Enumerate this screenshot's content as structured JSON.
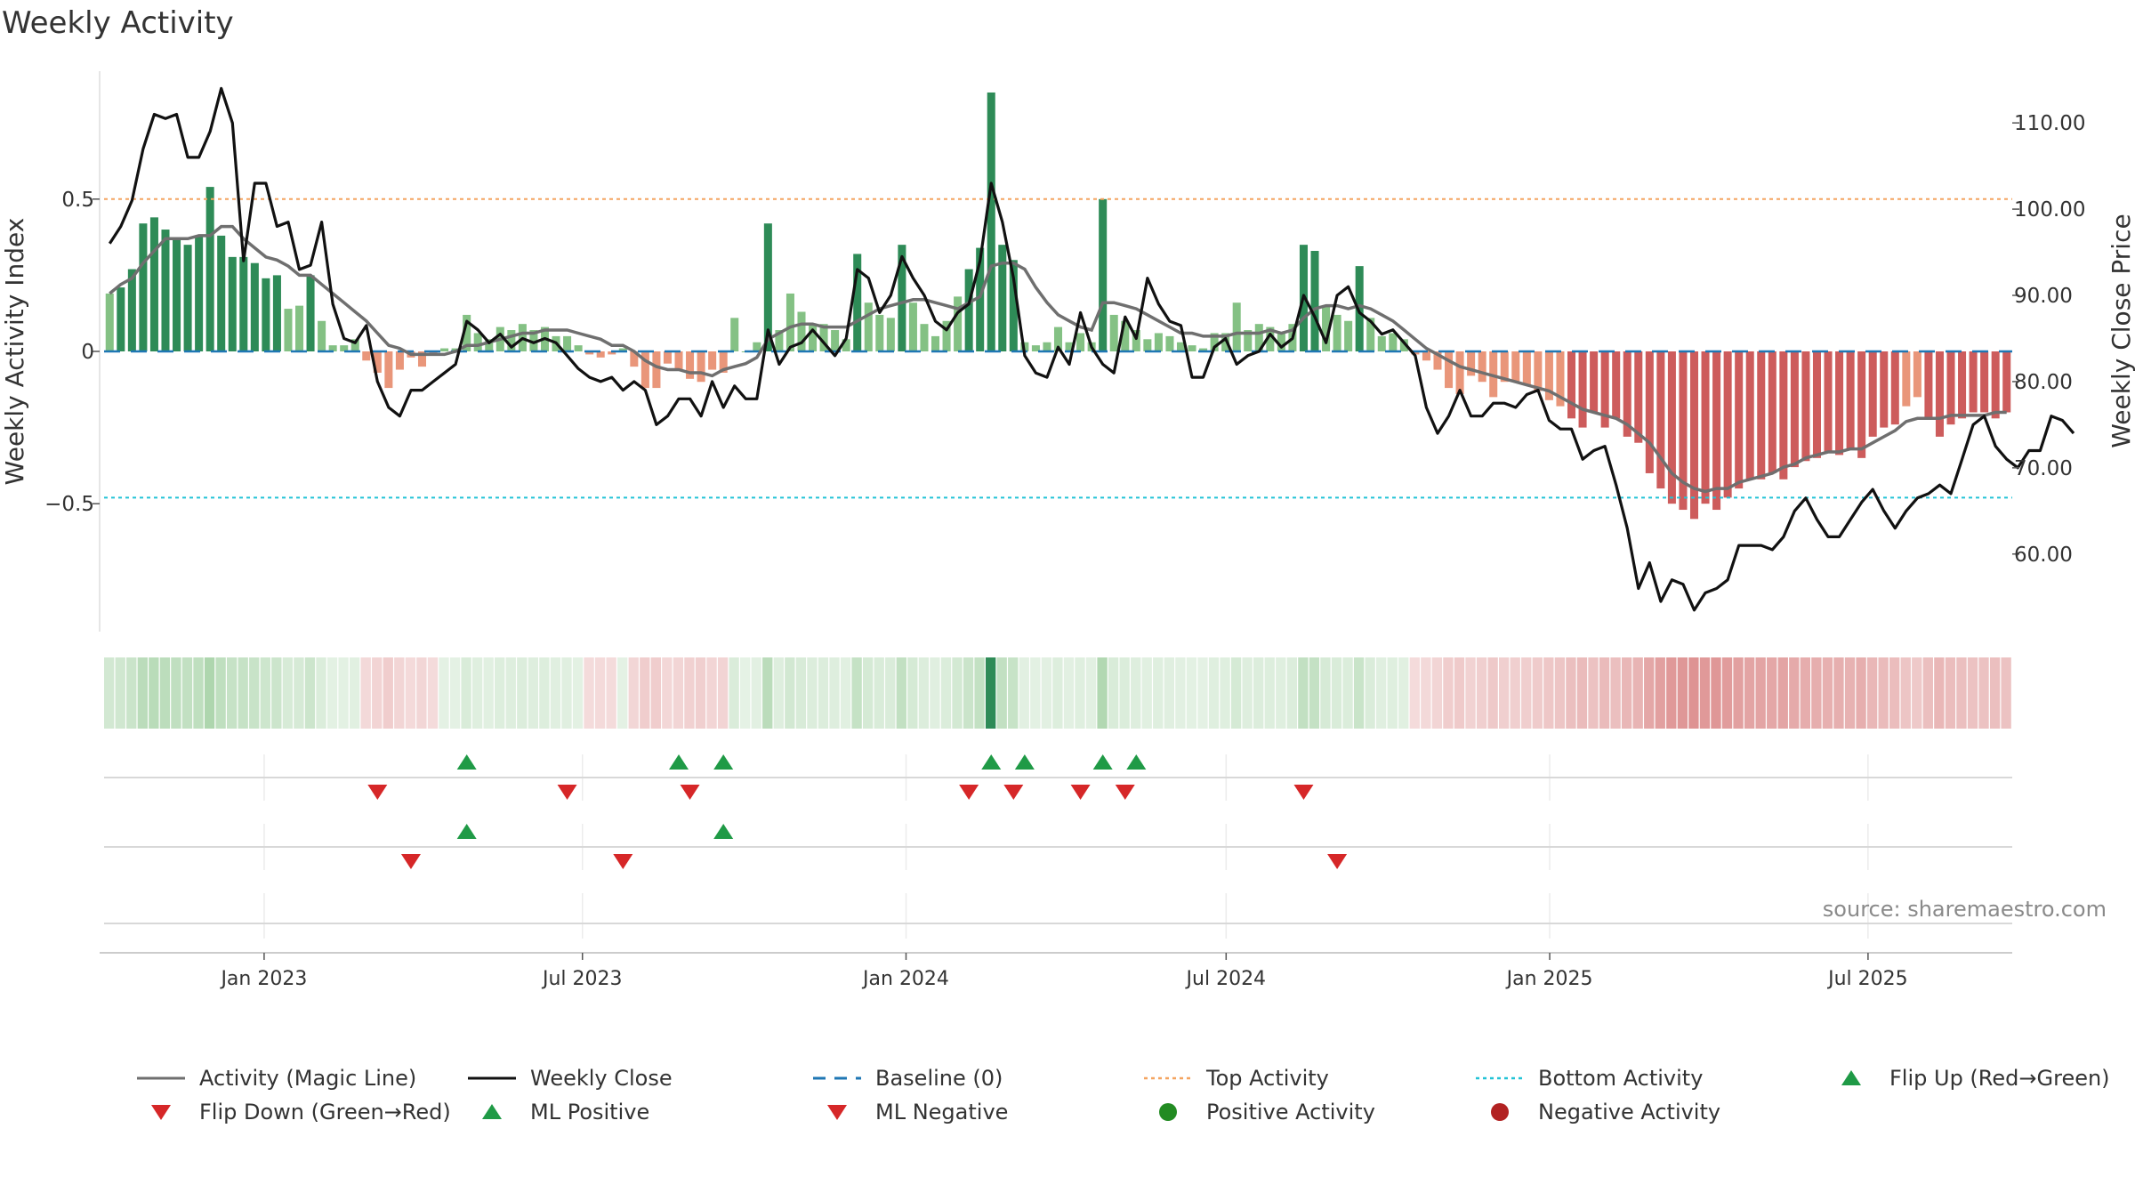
{
  "title": "Weekly Activity",
  "source": "source: sharemaestro.com",
  "colors": {
    "pos_dark": "#2e8b57",
    "pos_light": "#84c184",
    "neg_dark": "#cd5c5c",
    "neg_light": "#e9967a",
    "magic": "#6f6f6f",
    "close": "#111111",
    "baseline": "#1f77b4",
    "top": "#f4a460",
    "bottom": "#22c3d6",
    "up": "#1f9a46",
    "down": "#d62728",
    "pos_dot": "#228b22",
    "neg_dot": "#b22222"
  },
  "chart_data": {
    "type": "bar+line",
    "title": "Weekly Activity",
    "ylabel": "Weekly Activity Index",
    "y2label": "Weekly Close Price",
    "ylim": [
      -0.92,
      0.92
    ],
    "y2lim": [
      51.0,
      116.0
    ],
    "yticks": [
      0.5,
      0,
      -0.5
    ],
    "yticklabels": [
      "0.5",
      "0",
      "−0.5"
    ],
    "y2ticks": [
      110,
      100,
      90,
      80,
      70,
      60
    ],
    "y2ticklabels": [
      "110.00",
      "100.00",
      "90.00",
      "80.00",
      "70.00",
      "60.00"
    ],
    "top_activity": 0.5,
    "bottom_activity": -0.48,
    "baseline": 0,
    "x_start": "2022-10-02",
    "x_end": "2025-09-21",
    "xticks": [
      "2023-01-01",
      "2023-07-01",
      "2024-01-01",
      "2024-07-01",
      "2025-01-01",
      "2025-07-01"
    ],
    "xticklabels": [
      "Jan 2023",
      "Jul 2023",
      "Jan 2024",
      "Jul 2024",
      "Jan 2025",
      "Jul 2025"
    ],
    "activity": [
      0.19,
      0.21,
      0.27,
      0.42,
      0.44,
      0.4,
      0.37,
      0.35,
      0.38,
      0.54,
      0.38,
      0.31,
      0.31,
      0.29,
      0.24,
      0.25,
      0.14,
      0.15,
      0.25,
      0.1,
      0.02,
      0.02,
      0.04,
      -0.03,
      -0.07,
      -0.12,
      -0.06,
      -0.02,
      -0.05,
      -0.01,
      0.01,
      0.01,
      0.12,
      0.06,
      0.04,
      0.08,
      0.07,
      0.09,
      0.07,
      0.08,
      0.05,
      0.05,
      0.02,
      -0.01,
      -0.02,
      -0.01,
      0.01,
      -0.05,
      -0.12,
      -0.12,
      -0.04,
      -0.06,
      -0.09,
      -0.1,
      -0.06,
      -0.07,
      0.11,
      0.0,
      0.03,
      0.42,
      0.07,
      0.19,
      0.13,
      0.09,
      0.09,
      0.07,
      0.04,
      0.32,
      0.16,
      0.12,
      0.11,
      0.35,
      0.16,
      0.09,
      0.05,
      0.1,
      0.18,
      0.27,
      0.34,
      0.85,
      0.35,
      0.3,
      0.03,
      0.02,
      0.03,
      0.08,
      0.03,
      0.06,
      0.03,
      0.5,
      0.12,
      0.1,
      0.07,
      0.04,
      0.06,
      0.05,
      0.03,
      0.02,
      0.01,
      0.06,
      0.06,
      0.16,
      0.07,
      0.09,
      0.08,
      0.06,
      0.09,
      0.35,
      0.33,
      0.15,
      0.12,
      0.1,
      0.28,
      0.11,
      0.05,
      0.06,
      0.04,
      -0.01,
      -0.03,
      -0.06,
      -0.12,
      -0.14,
      -0.08,
      -0.1,
      -0.15,
      -0.1,
      -0.1,
      -0.11,
      -0.13,
      -0.16,
      -0.18,
      -0.22,
      -0.25,
      -0.2,
      -0.25,
      -0.22,
      -0.28,
      -0.3,
      -0.4,
      -0.45,
      -0.5,
      -0.52,
      -0.55,
      -0.5,
      -0.52,
      -0.48,
      -0.45,
      -0.42,
      -0.42,
      -0.4,
      -0.42,
      -0.38,
      -0.36,
      -0.35,
      -0.33,
      -0.34,
      -0.32,
      -0.35,
      -0.28,
      -0.25,
      -0.24,
      -0.18,
      -0.15,
      -0.22,
      -0.28,
      -0.24,
      -0.22,
      -0.2,
      -0.2,
      -0.22,
      -0.2
    ],
    "magic_line": [
      0.19,
      0.22,
      0.24,
      0.29,
      0.33,
      0.37,
      0.37,
      0.37,
      0.38,
      0.38,
      0.41,
      0.41,
      0.37,
      0.34,
      0.31,
      0.3,
      0.28,
      0.25,
      0.25,
      0.22,
      0.19,
      0.16,
      0.13,
      0.1,
      0.06,
      0.02,
      0.01,
      -0.01,
      -0.01,
      -0.01,
      -0.01,
      0.0,
      0.02,
      0.02,
      0.03,
      0.04,
      0.05,
      0.06,
      0.06,
      0.07,
      0.07,
      0.07,
      0.06,
      0.05,
      0.04,
      0.02,
      0.02,
      0.0,
      -0.03,
      -0.05,
      -0.06,
      -0.06,
      -0.07,
      -0.07,
      -0.08,
      -0.06,
      -0.05,
      -0.04,
      -0.02,
      0.04,
      0.06,
      0.08,
      0.09,
      0.09,
      0.08,
      0.08,
      0.08,
      0.1,
      0.12,
      0.14,
      0.15,
      0.16,
      0.17,
      0.17,
      0.16,
      0.15,
      0.14,
      0.16,
      0.18,
      0.28,
      0.29,
      0.29,
      0.27,
      0.21,
      0.16,
      0.12,
      0.1,
      0.08,
      0.07,
      0.16,
      0.16,
      0.15,
      0.14,
      0.12,
      0.1,
      0.08,
      0.06,
      0.06,
      0.05,
      0.05,
      0.05,
      0.06,
      0.06,
      0.06,
      0.07,
      0.06,
      0.07,
      0.11,
      0.14,
      0.15,
      0.15,
      0.14,
      0.15,
      0.14,
      0.12,
      0.1,
      0.07,
      0.04,
      0.01,
      -0.01,
      -0.03,
      -0.05,
      -0.06,
      -0.07,
      -0.08,
      -0.09,
      -0.1,
      -0.11,
      -0.12,
      -0.13,
      -0.15,
      -0.17,
      -0.19,
      -0.2,
      -0.21,
      -0.22,
      -0.24,
      -0.27,
      -0.3,
      -0.35,
      -0.4,
      -0.43,
      -0.45,
      -0.46,
      -0.45,
      -0.45,
      -0.43,
      -0.42,
      -0.41,
      -0.4,
      -0.38,
      -0.37,
      -0.35,
      -0.34,
      -0.33,
      -0.33,
      -0.32,
      -0.32,
      -0.3,
      -0.28,
      -0.26,
      -0.23,
      -0.22,
      -0.22,
      -0.22,
      -0.21,
      -0.21,
      -0.21,
      -0.21,
      -0.2,
      -0.2
    ],
    "weekly_close": [
      96.0,
      98.0,
      101.0,
      107.0,
      111.0,
      110.5,
      111.0,
      106.0,
      106.0,
      109.0,
      114.0,
      110.0,
      94.0,
      103.0,
      103.0,
      98.0,
      98.5,
      93.0,
      93.5,
      98.5,
      89.0,
      85.0,
      84.5,
      86.5,
      80.0,
      77.0,
      76.0,
      79.0,
      79.0,
      80.0,
      81.0,
      82.0,
      87.0,
      86.0,
      84.5,
      85.5,
      84.0,
      85.0,
      84.5,
      85.0,
      84.5,
      83.0,
      81.5,
      80.5,
      80.0,
      80.5,
      79.0,
      80.0,
      79.0,
      75.0,
      76.0,
      78.0,
      78.0,
      76.0,
      80.0,
      77.0,
      79.5,
      78.0,
      78.0,
      86.0,
      82.0,
      84.0,
      84.5,
      86.0,
      84.5,
      83.0,
      85.0,
      93.0,
      92.0,
      88.0,
      90.0,
      94.5,
      92.0,
      90.0,
      87.0,
      86.0,
      88.0,
      89.0,
      94.0,
      103.0,
      98.5,
      92.0,
      83.0,
      81.0,
      80.5,
      84.0,
      82.0,
      88.0,
      84.0,
      82.0,
      81.0,
      87.5,
      85.0,
      92.0,
      89.0,
      87.0,
      86.5,
      80.5,
      80.5,
      84.0,
      85.0,
      82.0,
      83.0,
      83.5,
      85.5,
      84.0,
      85.0,
      90.0,
      87.5,
      84.5,
      90.0,
      91.0,
      88.0,
      87.0,
      85.5,
      86.0,
      84.5,
      83.0,
      77.0,
      74.0,
      76.0,
      79.0,
      76.0,
      76.0,
      77.5,
      77.5,
      77.0,
      78.5,
      79.0,
      75.5,
      74.5,
      74.5,
      71.0,
      72.0,
      72.5,
      68.0,
      63.0,
      56.0,
      59.0,
      54.5,
      57.0,
      56.5,
      53.5,
      55.5,
      56.0,
      57.0,
      61.0,
      61.0,
      61.0,
      60.5,
      62.0,
      65.0,
      66.5,
      64.0,
      62.0,
      62.0,
      64.0,
      66.0,
      67.5,
      65.0,
      63.0,
      65.0,
      66.5,
      67.0,
      68.0,
      67.0,
      71.0,
      75.0,
      76.0,
      72.5,
      71.0,
      70.0,
      72.0,
      72.0,
      76.0,
      75.5,
      74.0
    ],
    "flip_up_idx": [
      32,
      51,
      55,
      79,
      82,
      89,
      92
    ],
    "flip_down_idx": [
      24,
      41,
      52,
      77,
      81,
      87,
      91,
      107
    ],
    "ml_positive_idx": [
      32,
      55
    ],
    "ml_negative_idx": [
      27,
      46,
      110
    ],
    "legend": [
      {
        "label": "Activity (Magic Line)",
        "kind": "solid",
        "color": "#6f6f6f"
      },
      {
        "label": "Weekly Close",
        "kind": "solid",
        "color": "#111111"
      },
      {
        "label": "Baseline (0)",
        "kind": "dashed",
        "color": "#1f77b4"
      },
      {
        "label": "Top Activity",
        "kind": "dotted",
        "color": "#f4a460"
      },
      {
        "label": "Bottom Activity",
        "kind": "dotted",
        "color": "#22c3d6"
      },
      {
        "label": "Flip Up (Red→Green)",
        "kind": "tri-up",
        "color": "#1f9a46"
      },
      {
        "label": "Flip Down (Green→Red)",
        "kind": "tri-down",
        "color": "#d62728"
      },
      {
        "label": "ML Positive",
        "kind": "tri-up",
        "color": "#1f9a46"
      },
      {
        "label": "ML Negative",
        "kind": "tri-down",
        "color": "#d62728"
      },
      {
        "label": "Positive Activity",
        "kind": "dot",
        "color": "#228b22"
      },
      {
        "label": "Negative Activity",
        "kind": "dot",
        "color": "#b22222"
      }
    ]
  }
}
